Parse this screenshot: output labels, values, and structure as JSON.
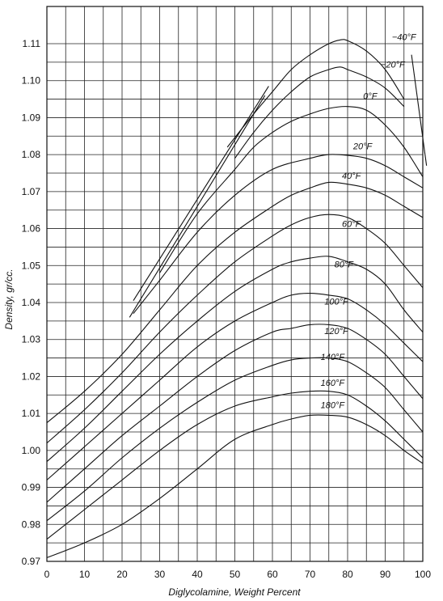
{
  "chart_data": {
    "type": "line",
    "title": "",
    "xlabel": "Diglycolamine, Weight Percent",
    "ylabel": "Density, gr/cc.",
    "xlim": [
      0,
      100
    ],
    "ylim": [
      0.97,
      1.115
    ],
    "grid": true,
    "x_ticks": [
      "0",
      "10",
      "20",
      "30",
      "40",
      "50",
      "60",
      "70",
      "80",
      "90",
      "100"
    ],
    "y_ticks": [
      "0.97",
      "0.98",
      "0.99",
      "1.00",
      "1.01",
      "1.02",
      "1.03",
      "1.04",
      "1.05",
      "1.06",
      "1.07",
      "1.08",
      "1.09",
      "1.10",
      "1.11"
    ],
    "series": [
      {
        "name": "−40°F",
        "label_at": [
          95,
          1.111
        ],
        "x": [
          48,
          55,
          60,
          65,
          70,
          75,
          78,
          80,
          85,
          90,
          95
        ],
        "y": [
          1.082,
          1.091,
          1.097,
          1.103,
          1.107,
          1.11,
          1.111,
          1.1108,
          1.108,
          1.103,
          1.095
        ]
      },
      {
        "name": "−20°F",
        "label_at": [
          92,
          1.1035
        ],
        "x": [
          50,
          55,
          60,
          65,
          70,
          75,
          78,
          80,
          85,
          90,
          95
        ],
        "y": [
          1.079,
          1.086,
          1.092,
          1.097,
          1.101,
          1.103,
          1.1037,
          1.103,
          1.101,
          1.098,
          1.093
        ]
      },
      {
        "name": "0°F",
        "label_at": [
          86,
          1.095
        ],
        "x": [
          30,
          40,
          50,
          55,
          60,
          65,
          70,
          75,
          80,
          85,
          90,
          95,
          100
        ],
        "y": [
          1.048,
          1.064,
          1.076,
          1.082,
          1.086,
          1.089,
          1.091,
          1.0925,
          1.093,
          1.092,
          1.088,
          1.082,
          1.074
        ]
      },
      {
        "name": "20°F",
        "label_at": [
          84,
          1.0815
        ],
        "x": [
          23,
          30,
          40,
          50,
          60,
          70,
          75,
          80,
          85,
          90,
          95,
          100
        ],
        "y": [
          1.037,
          1.046,
          1.059,
          1.069,
          1.076,
          1.079,
          1.08,
          1.0798,
          1.079,
          1.077,
          1.074,
          1.071
        ]
      },
      {
        "name": "40°F",
        "label_at": [
          81,
          1.0735
        ],
        "x": [
          0,
          10,
          20,
          30,
          40,
          50,
          60,
          65,
          70,
          75,
          80,
          85,
          90,
          95,
          100
        ],
        "y": [
          1.0075,
          1.016,
          1.026,
          1.038,
          1.05,
          1.059,
          1.066,
          1.069,
          1.071,
          1.0725,
          1.072,
          1.071,
          1.069,
          1.066,
          1.063
        ]
      },
      {
        "name": "60°F",
        "label_at": [
          81,
          1.0605
        ],
        "x": [
          0,
          10,
          20,
          30,
          40,
          50,
          60,
          65,
          70,
          75,
          80,
          85,
          90,
          95,
          100
        ],
        "y": [
          1.002,
          1.011,
          1.021,
          1.032,
          1.042,
          1.051,
          1.058,
          1.061,
          1.063,
          1.0638,
          1.063,
          1.06,
          1.056,
          1.05,
          1.044
        ]
      },
      {
        "name": "80°F",
        "label_at": [
          79,
          1.0495
        ],
        "x": [
          0,
          10,
          20,
          30,
          40,
          50,
          60,
          65,
          70,
          75,
          80,
          85,
          90,
          95,
          100
        ],
        "y": [
          0.997,
          1.006,
          1.016,
          1.026,
          1.035,
          1.043,
          1.049,
          1.051,
          1.052,
          1.0525,
          1.051,
          1.049,
          1.045,
          1.038,
          1.032
        ]
      },
      {
        "name": "100°F",
        "label_at": [
          77,
          1.0395
        ],
        "x": [
          0,
          10,
          20,
          30,
          40,
          50,
          60,
          65,
          70,
          75,
          80,
          85,
          90,
          95,
          100
        ],
        "y": [
          0.992,
          1.001,
          1.01,
          1.019,
          1.028,
          1.035,
          1.04,
          1.042,
          1.0425,
          1.042,
          1.041,
          1.038,
          1.034,
          1.029,
          1.024
        ]
      },
      {
        "name": "120°F",
        "label_at": [
          77,
          1.0315
        ],
        "x": [
          0,
          10,
          20,
          30,
          40,
          50,
          60,
          65,
          70,
          75,
          80,
          85,
          90,
          95,
          100
        ],
        "y": [
          0.986,
          0.995,
          1.004,
          1.012,
          1.02,
          1.027,
          1.032,
          1.033,
          1.034,
          1.034,
          1.033,
          1.03,
          1.026,
          1.02,
          1.014
        ]
      },
      {
        "name": "140°F",
        "label_at": [
          76,
          1.0245
        ],
        "x": [
          0,
          10,
          20,
          30,
          40,
          50,
          60,
          65,
          70,
          75,
          80,
          85,
          90,
          95,
          100
        ],
        "y": [
          0.981,
          0.989,
          0.998,
          1.006,
          1.013,
          1.019,
          1.023,
          1.0245,
          1.025,
          1.025,
          1.024,
          1.021,
          1.017,
          1.011,
          1.005
        ]
      },
      {
        "name": "160°F",
        "label_at": [
          76,
          1.0175
        ],
        "x": [
          0,
          10,
          20,
          30,
          40,
          50,
          60,
          65,
          70,
          75,
          80,
          85,
          90,
          95,
          100
        ],
        "y": [
          0.976,
          0.984,
          0.992,
          1.0,
          1.007,
          1.012,
          1.0145,
          1.0155,
          1.016,
          1.016,
          1.015,
          1.012,
          1.008,
          1.003,
          0.998
        ]
      },
      {
        "name": "180°F",
        "label_at": [
          76,
          1.0115
        ],
        "x": [
          0,
          10,
          20,
          30,
          40,
          50,
          60,
          65,
          70,
          75,
          80,
          85,
          90,
          95,
          100
        ],
        "y": [
          0.971,
          0.975,
          0.98,
          0.987,
          0.995,
          1.003,
          1.007,
          1.0085,
          1.0095,
          1.0095,
          1.009,
          1.007,
          1.004,
          1.0,
          0.9965
        ]
      }
    ],
    "boundaries": [
      {
        "x": [
          23,
          59
        ],
        "y": [
          1.0405,
          1.0985
        ]
      },
      {
        "x": [
          22,
          58
        ],
        "y": [
          1.036,
          1.096
        ]
      },
      {
        "x": [
          97,
          101
        ],
        "y": [
          1.107,
          1.077
        ]
      }
    ]
  }
}
